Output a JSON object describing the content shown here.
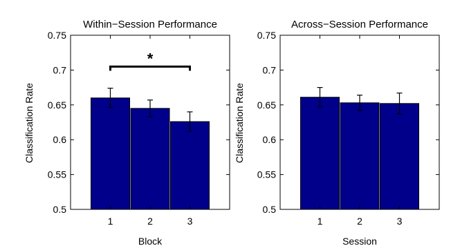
{
  "chart_data": [
    {
      "type": "bar",
      "title": "Within−Session Performance",
      "xlabel": "Block",
      "ylabel": "Classification Rate",
      "categories": [
        "1",
        "2",
        "3"
      ],
      "values": [
        0.66,
        0.645,
        0.626
      ],
      "errors": [
        0.014,
        0.012,
        0.014
      ],
      "ylim": [
        0.5,
        0.75
      ],
      "yticks": [
        "0.5",
        "0.55",
        "0.6",
        "0.65",
        "0.7",
        "0.75"
      ],
      "bar_color": "#00008b",
      "significance": {
        "from": "1",
        "to": "3",
        "level": 0.705,
        "label": "*"
      }
    },
    {
      "type": "bar",
      "title": "Across−Session Performance",
      "xlabel": "Session",
      "ylabel": "Classification Rate",
      "categories": [
        "1",
        "2",
        "3"
      ],
      "values": [
        0.661,
        0.653,
        0.652
      ],
      "errors": [
        0.014,
        0.011,
        0.015
      ],
      "ylim": [
        0.5,
        0.75
      ],
      "yticks": [
        "0.5",
        "0.55",
        "0.6",
        "0.65",
        "0.7",
        "0.75"
      ],
      "bar_color": "#00008b"
    }
  ]
}
